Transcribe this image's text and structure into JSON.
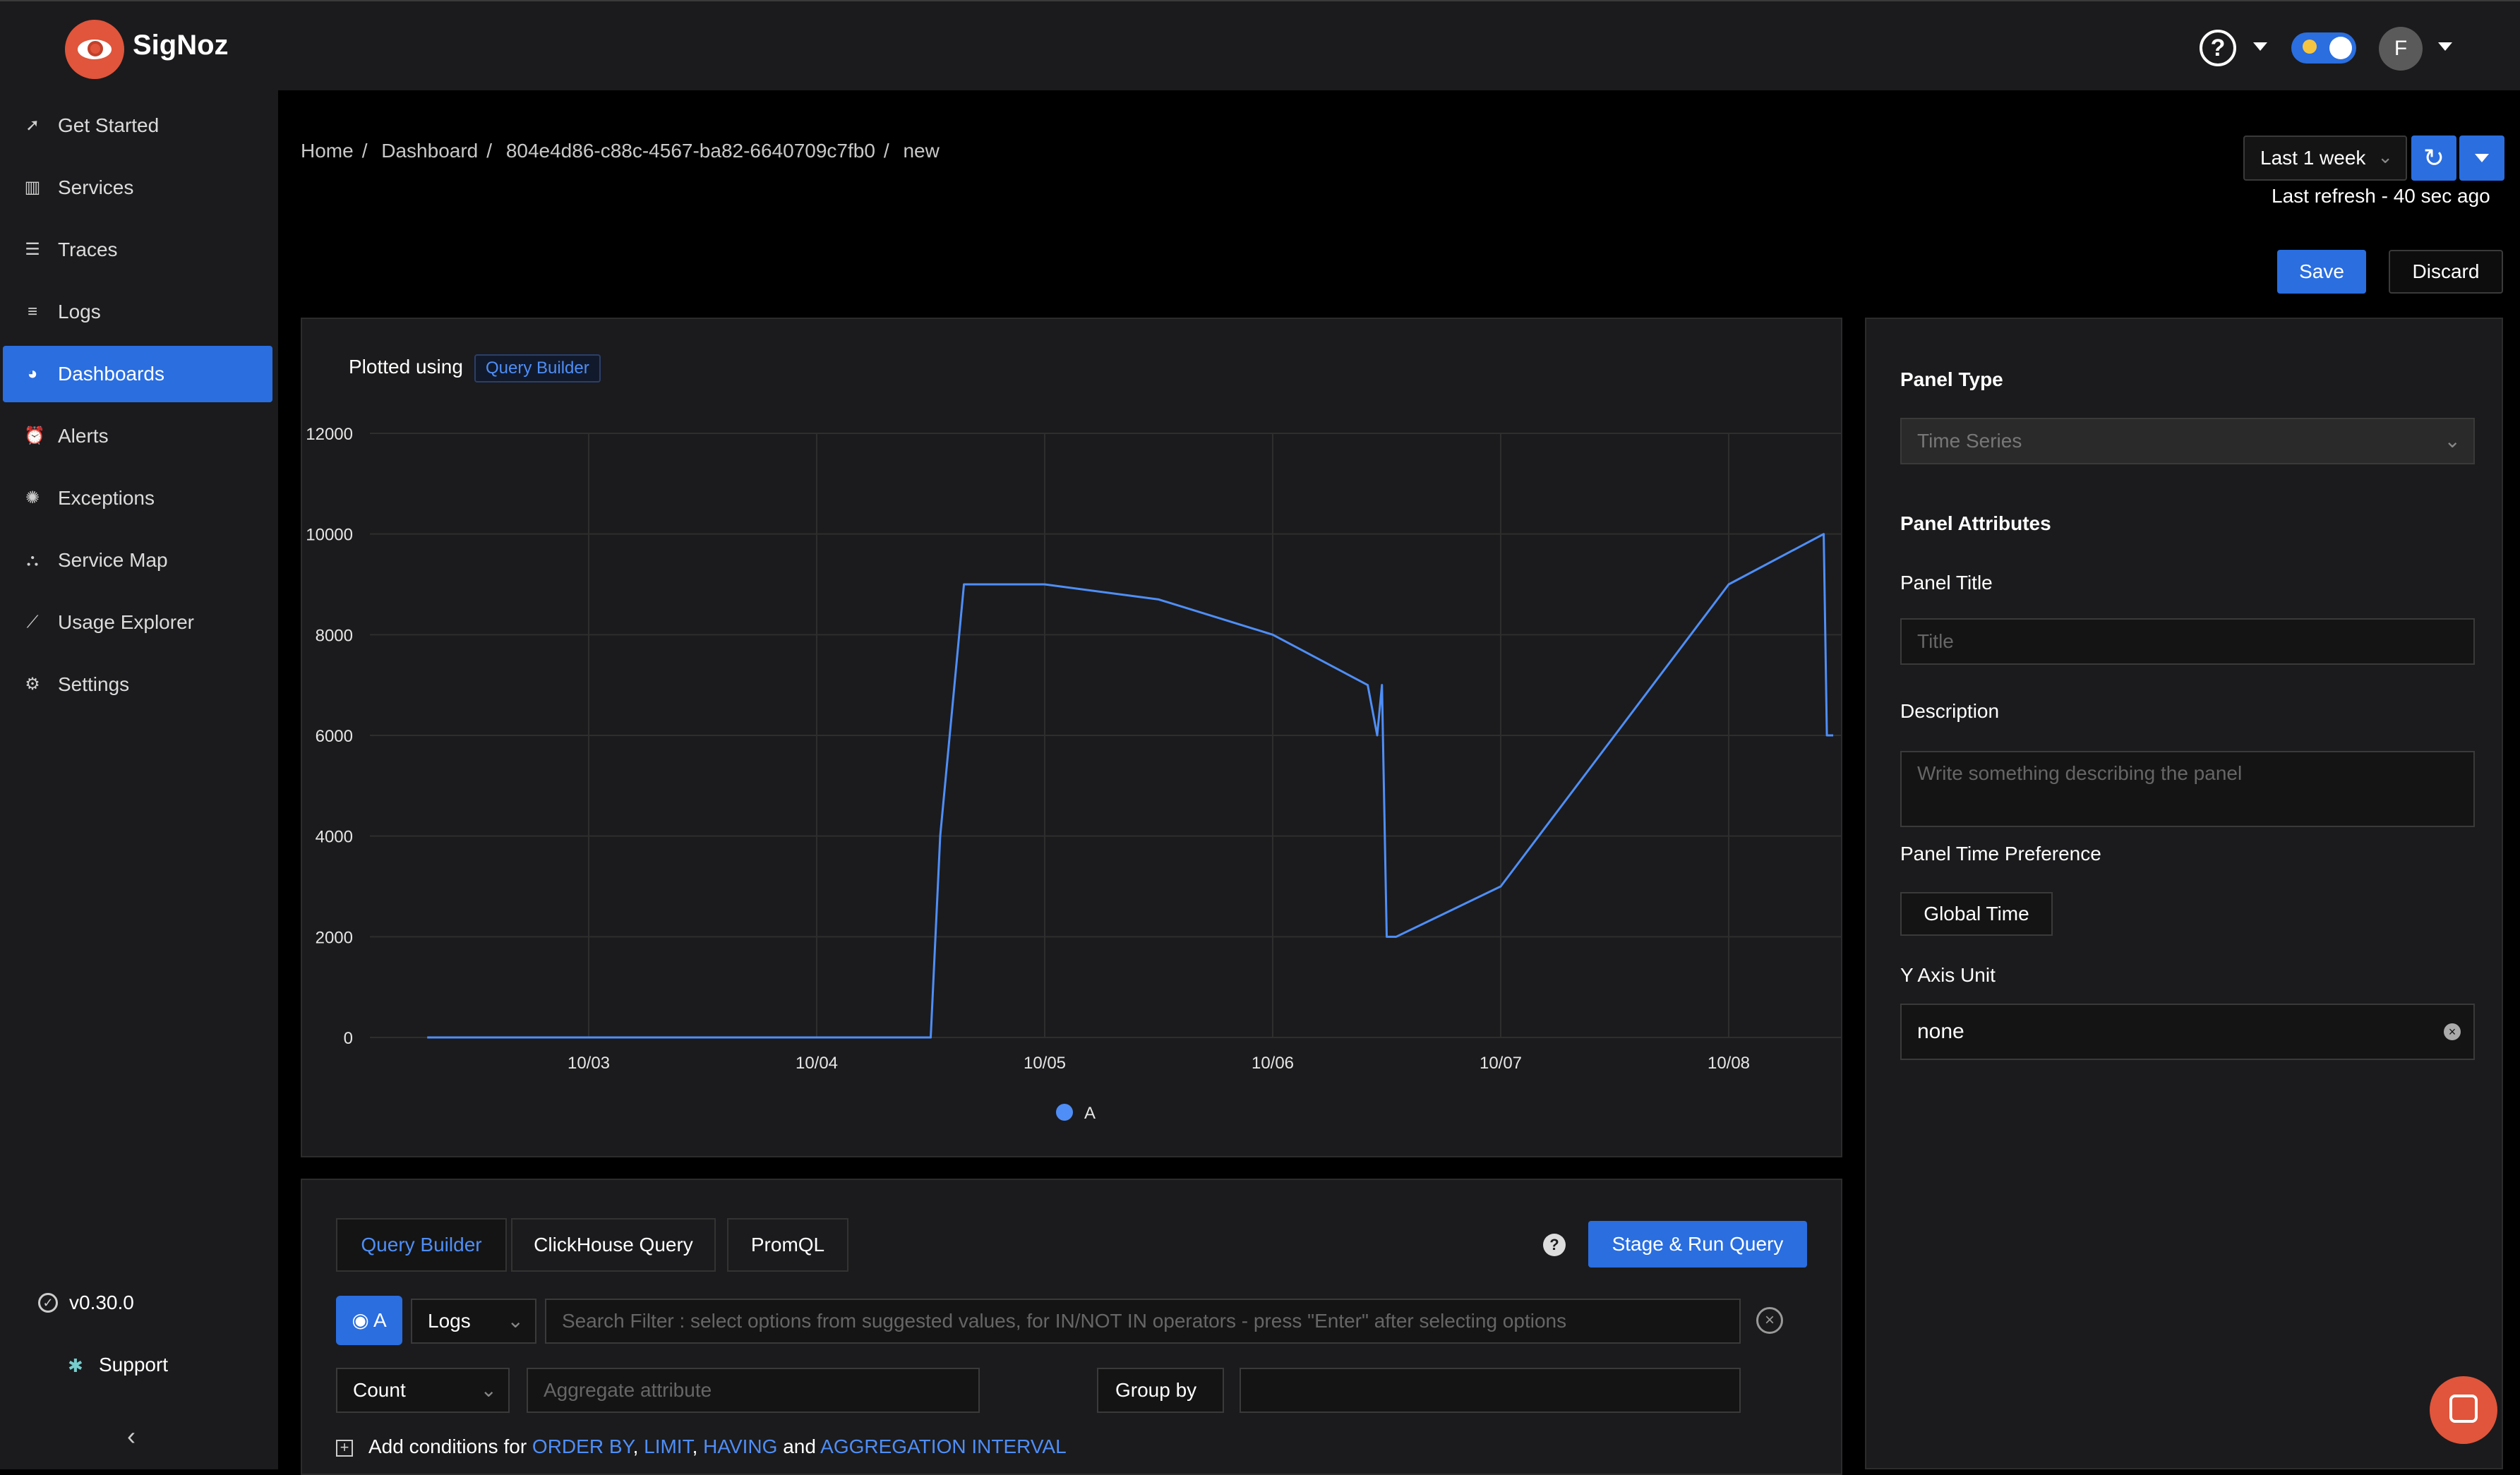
{
  "app": {
    "brand": "SigNoz"
  },
  "header": {
    "avatar_initial": "F",
    "help_symbol": "?"
  },
  "sidebar": {
    "items": [
      {
        "label": "Get Started",
        "icon": "rocket-icon"
      },
      {
        "label": "Services",
        "icon": "bar-chart-icon"
      },
      {
        "label": "Traces",
        "icon": "list-icon"
      },
      {
        "label": "Logs",
        "icon": "lines-icon"
      },
      {
        "label": "Dashboards",
        "icon": "dashboard-icon",
        "active": true
      },
      {
        "label": "Alerts",
        "icon": "alarm-icon"
      },
      {
        "label": "Exceptions",
        "icon": "bug-icon"
      },
      {
        "label": "Service Map",
        "icon": "graph-icon"
      },
      {
        "label": "Usage Explorer",
        "icon": "line-chart-icon"
      },
      {
        "label": "Settings",
        "icon": "gear-icon"
      }
    ],
    "version": "v0.30.0",
    "support": "Support"
  },
  "breadcrumb": [
    "Home",
    "Dashboard",
    "804e4d86-c88c-4567-ba82-6640709c7fb0",
    "new"
  ],
  "toolbar": {
    "time_range": "Last 1 week",
    "last_refresh": "Last refresh - 40 sec ago",
    "save_label": "Save",
    "discard_label": "Discard"
  },
  "chart_panel": {
    "plotted_using": "Plotted using",
    "source_tag": "Query Builder"
  },
  "chart_data": {
    "type": "line",
    "title": "",
    "xlabel": "",
    "ylabel": "",
    "ylim": [
      0,
      12000
    ],
    "y_ticks": [
      0,
      2000,
      4000,
      6000,
      8000,
      10000,
      12000
    ],
    "x_ticks": [
      "10/03",
      "10/04",
      "10/05",
      "10/06",
      "10/07",
      "10/08"
    ],
    "x_range": [
      "10/02",
      "10/08"
    ],
    "grid": true,
    "legend_position": "bottom",
    "color": "#4f8ef7",
    "series": [
      {
        "name": "A",
        "x": [
          "10/02 07:00",
          "10/02 12:00",
          "10/03",
          "10/03 12:00",
          "10/04",
          "10/04 12:00",
          "10/04 13:00",
          "10/04 15:30",
          "10/05",
          "10/05 12:00",
          "10/06",
          "10/06 10:00",
          "10/06 11:00",
          "10/06 11:30",
          "10/06 12:00",
          "10/06 13:00",
          "10/07",
          "10/07 12:00",
          "10/08",
          "10/08 10:00",
          "10/08 10:20",
          "10/08 11:00"
        ],
        "values": [
          0,
          0,
          0,
          0,
          0,
          0,
          4000,
          9000,
          9000,
          8700,
          8000,
          7000,
          6000,
          7000,
          2000,
          2000,
          3000,
          6000,
          9000,
          10000,
          6000,
          6000
        ]
      }
    ]
  },
  "right_panel": {
    "panel_type_heading": "Panel Type",
    "panel_type_value": "Time Series",
    "attributes_heading": "Panel Attributes",
    "title_label": "Panel Title",
    "title_placeholder": "Title",
    "description_label": "Description",
    "description_placeholder": "Write something describing the  panel",
    "time_pref_label": "Panel Time Preference",
    "time_pref_value": "Global Time",
    "y_unit_label": "Y Axis Unit",
    "y_unit_value": "none"
  },
  "query": {
    "tabs": [
      "Query Builder",
      "ClickHouse Query",
      "PromQL"
    ],
    "run_label": "Stage & Run Query",
    "query_name": "A",
    "data_source": "Logs",
    "search_placeholder": "Search Filter : select options from suggested values, for IN/NOT IN operators - press \"Enter\" after selecting options",
    "aggregate_op": "Count",
    "aggregate_placeholder": "Aggregate attribute",
    "group_by_label": "Group by",
    "add_conditions_prefix": "Add conditions for",
    "conditions": [
      "ORDER BY",
      "LIMIT",
      "HAVING",
      "AGGREGATION INTERVAL"
    ],
    "and_word": "and"
  }
}
